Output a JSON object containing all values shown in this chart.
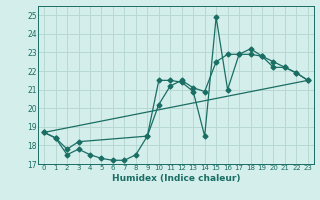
{
  "xlabel": "Humidex (Indice chaleur)",
  "xlim": [
    -0.5,
    23.5
  ],
  "ylim": [
    17,
    25.5
  ],
  "yticks": [
    17,
    18,
    19,
    20,
    21,
    22,
    23,
    24,
    25
  ],
  "xticks": [
    0,
    1,
    2,
    3,
    4,
    5,
    6,
    7,
    8,
    9,
    10,
    11,
    12,
    13,
    14,
    15,
    16,
    17,
    18,
    19,
    20,
    21,
    22,
    23
  ],
  "bg_color": "#d4eeeb",
  "grid_color": "#b8d8d4",
  "line_color": "#1a6e64",
  "line1_x": [
    0,
    1,
    2,
    3,
    4,
    5,
    6,
    7,
    8,
    9,
    10,
    11,
    12,
    13,
    14,
    15,
    16,
    17,
    18,
    19,
    20,
    21,
    22,
    23
  ],
  "line1_y": [
    18.7,
    18.4,
    17.5,
    17.8,
    17.5,
    17.3,
    17.2,
    17.2,
    17.5,
    18.5,
    21.5,
    21.5,
    21.4,
    20.9,
    18.5,
    24.9,
    21.0,
    22.9,
    23.2,
    22.8,
    22.2,
    22.2,
    21.9,
    21.5
  ],
  "line2_x": [
    0,
    1,
    2,
    3,
    9,
    10,
    11,
    12,
    13,
    14,
    15,
    16,
    17,
    18,
    19,
    20,
    21,
    22,
    23
  ],
  "line2_y": [
    18.7,
    18.4,
    17.8,
    18.2,
    18.5,
    20.2,
    21.2,
    21.5,
    21.1,
    20.9,
    22.5,
    22.9,
    22.9,
    22.9,
    22.8,
    22.5,
    22.2,
    21.9,
    21.5
  ],
  "line3_x": [
    0,
    23
  ],
  "line3_y": [
    18.7,
    21.5
  ]
}
